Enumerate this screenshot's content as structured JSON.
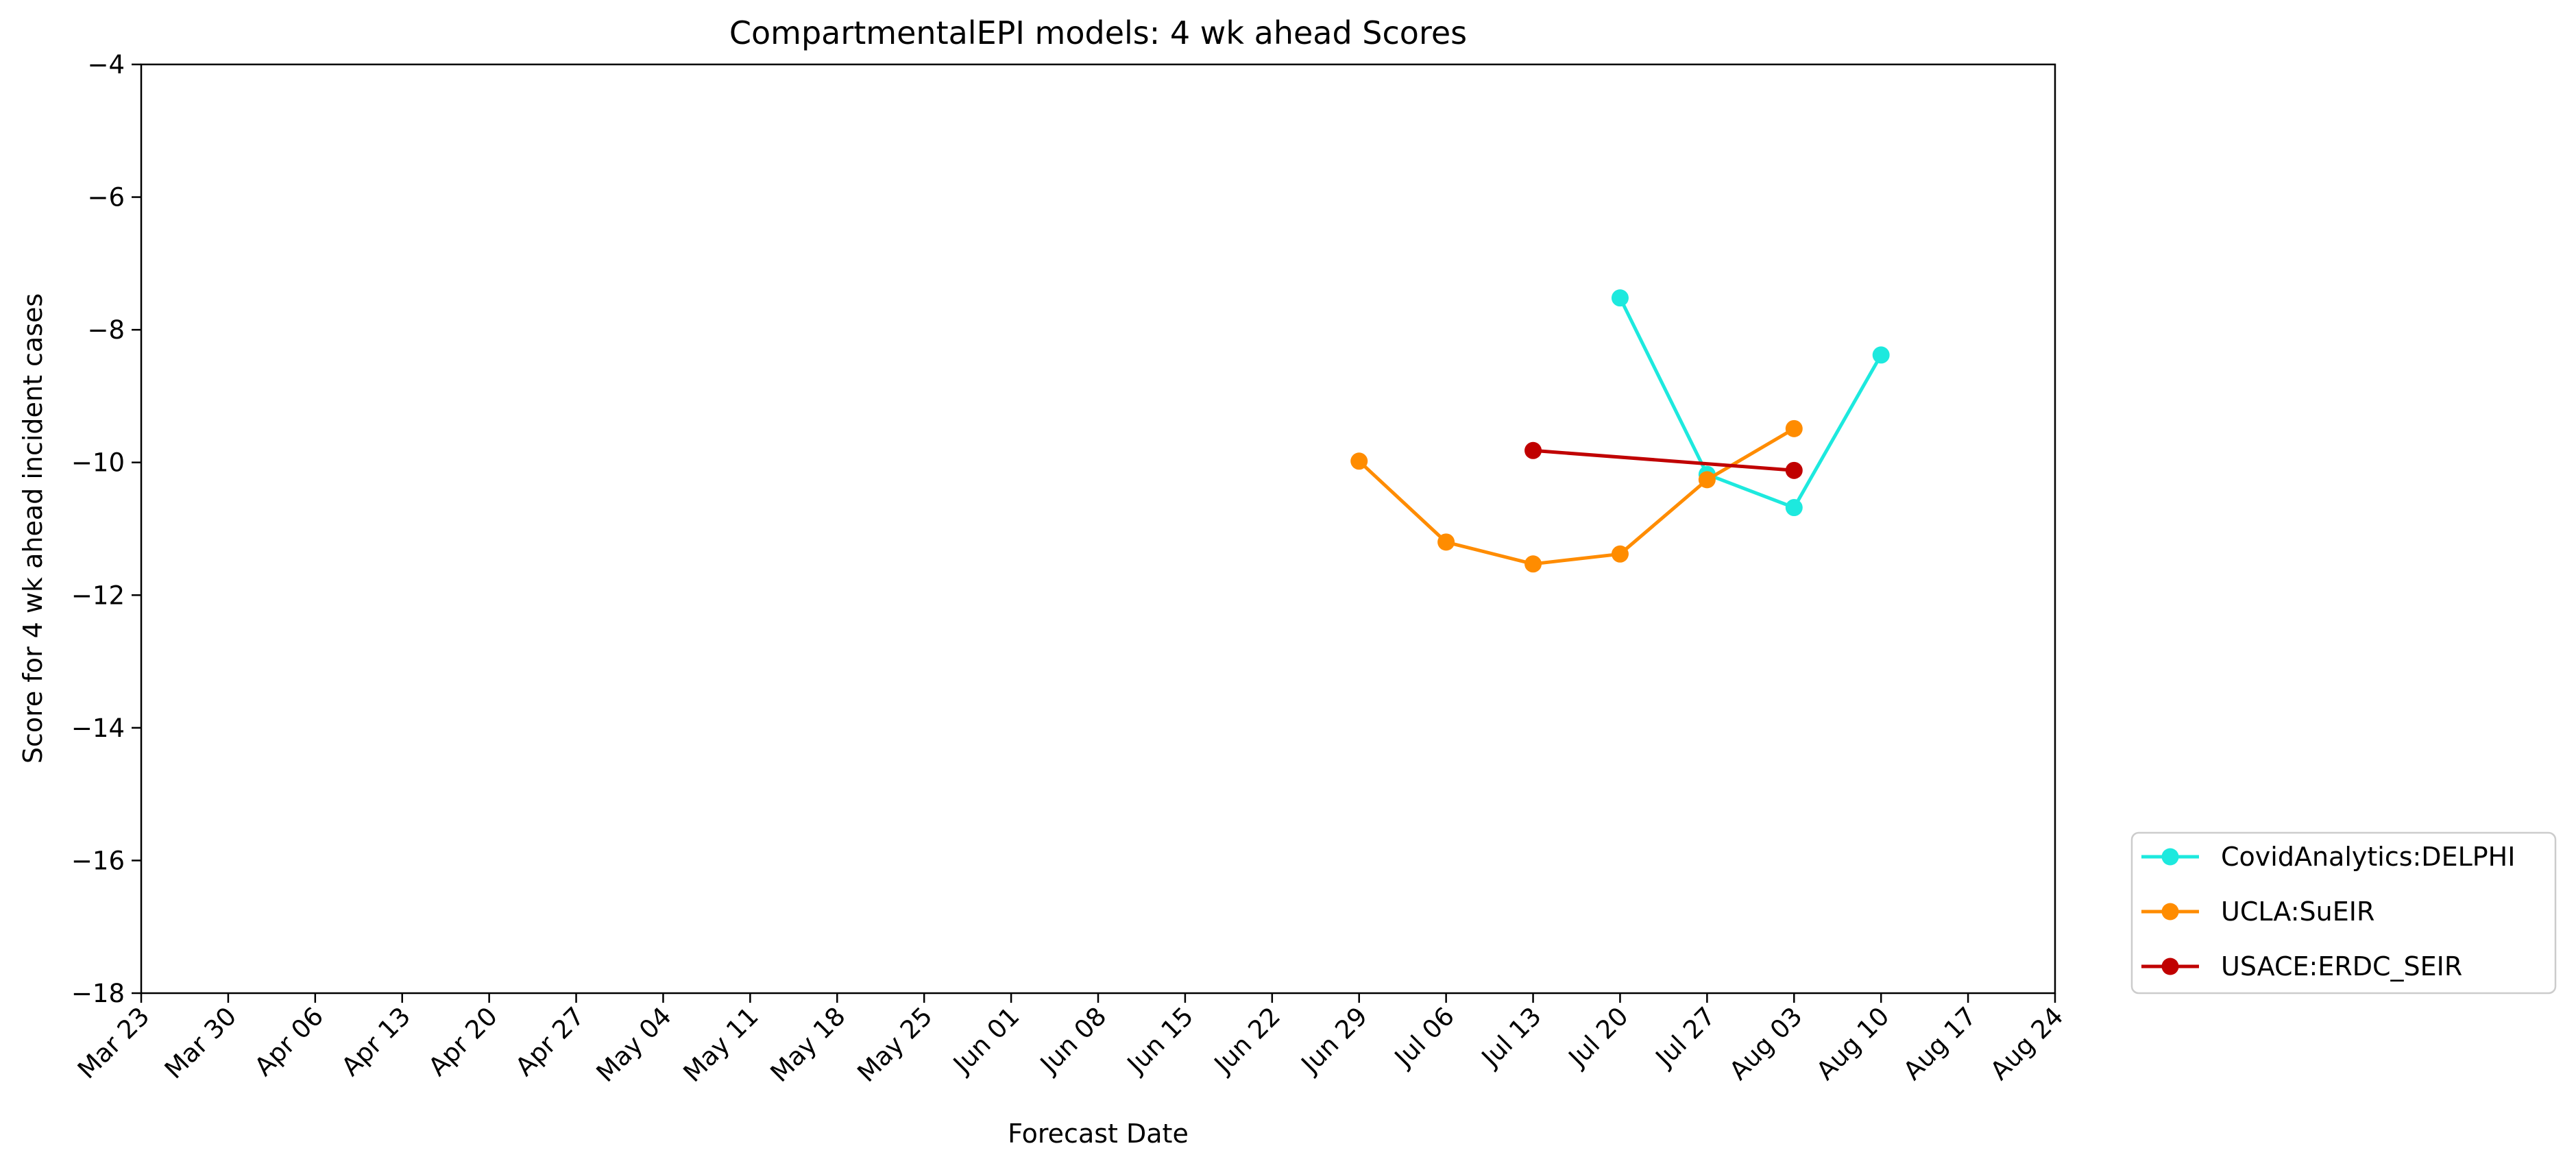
{
  "chart_data": {
    "type": "line",
    "title": "CompartmentalEPI models: 4 wk ahead Scores",
    "xlabel": "Forecast Date",
    "ylabel": "Score for 4 wk ahead incident cases",
    "x_tick_labels": [
      "Mar 23",
      "Mar 30",
      "Apr 06",
      "Apr 13",
      "Apr 20",
      "Apr 27",
      "May 04",
      "May 11",
      "May 18",
      "May 25",
      "Jun 01",
      "Jun 08",
      "Jun 15",
      "Jun 22",
      "Jun 29",
      "Jul 06",
      "Jul 13",
      "Jul 20",
      "Jul 27",
      "Aug 03",
      "Aug 10",
      "Aug 17",
      "Aug 24"
    ],
    "y_ticks": [
      -4,
      -6,
      -8,
      -10,
      -12,
      -14,
      -16,
      -18
    ],
    "ylim": [
      -18,
      -4
    ],
    "xlim": [
      "Mar 23",
      "Aug 24"
    ],
    "grid": false,
    "legend_position": "outside-lower-right",
    "series": [
      {
        "name": "CovidAnalytics:DELPHI",
        "color": "#1de9de",
        "x": [
          "Jul 20",
          "Jul 27",
          "Aug 03",
          "Aug 10"
        ],
        "y": [
          -7.52,
          -10.18,
          -10.68,
          -8.38
        ]
      },
      {
        "name": "UCLA:SuEIR",
        "color": "#ff8c00",
        "x": [
          "Jun 29",
          "Jul 06",
          "Jul 13",
          "Jul 20",
          "Jul 27",
          "Aug 03"
        ],
        "y": [
          -9.98,
          -11.2,
          -11.53,
          -11.38,
          -10.26,
          -9.49
        ]
      },
      {
        "name": "USACE:ERDC_SEIR",
        "color": "#c00000",
        "x": [
          "Jul 13",
          "Aug 03"
        ],
        "y": [
          -9.82,
          -10.12
        ]
      }
    ]
  }
}
